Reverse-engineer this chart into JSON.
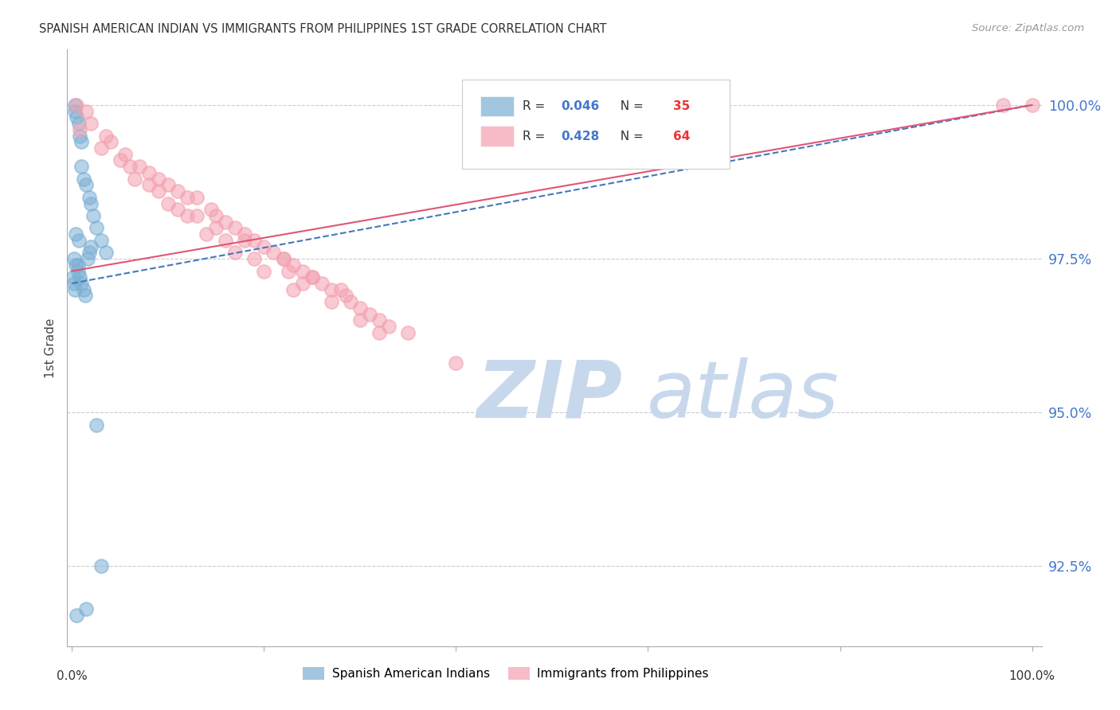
{
  "title": "SPANISH AMERICAN INDIAN VS IMMIGRANTS FROM PHILIPPINES 1ST GRADE CORRELATION CHART",
  "source": "Source: ZipAtlas.com",
  "ylabel": "1st Grade",
  "r_blue": 0.046,
  "n_blue": 35,
  "r_pink": 0.428,
  "n_pink": 64,
  "legend_label_blue": "Spanish American Indians",
  "legend_label_pink": "Immigrants from Philippines",
  "ytick_labels": [
    "92.5%",
    "95.0%",
    "97.5%",
    "100.0%"
  ],
  "ytick_values": [
    92.5,
    95.0,
    97.5,
    100.0
  ],
  "ymin": 91.2,
  "ymax": 100.9,
  "xmin": -0.5,
  "xmax": 101.0,
  "color_blue": "#7BAFD4",
  "color_pink": "#F4A0B0",
  "color_blue_line": "#4477BB",
  "color_pink_line": "#E05575",
  "watermark_zip": "ZIP",
  "watermark_atlas": "atlas",
  "watermark_color_zip": "#C8D8EC",
  "watermark_color_atlas": "#C8D8EC",
  "blue_x": [
    0.3,
    0.3,
    0.5,
    0.7,
    0.8,
    1.0,
    1.0,
    1.2,
    1.5,
    1.8,
    2.0,
    2.2,
    2.5,
    3.0,
    3.5,
    0.2,
    0.4,
    0.6,
    0.8,
    1.0,
    1.2,
    1.4,
    1.6,
    1.8,
    2.0,
    0.1,
    0.2,
    0.3,
    2.5,
    3.0,
    1.5,
    0.5,
    0.7,
    0.4,
    0.6
  ],
  "blue_y": [
    100.0,
    99.9,
    99.8,
    99.7,
    99.5,
    99.4,
    99.0,
    98.8,
    98.7,
    98.5,
    98.4,
    98.2,
    98.0,
    97.8,
    97.6,
    97.5,
    97.4,
    97.3,
    97.2,
    97.1,
    97.0,
    96.9,
    97.5,
    97.6,
    97.7,
    97.2,
    97.1,
    97.0,
    94.8,
    92.5,
    91.8,
    91.7,
    97.8,
    97.9,
    97.4
  ],
  "pink_x": [
    0.5,
    1.5,
    2.0,
    3.5,
    4.0,
    5.5,
    7.0,
    8.0,
    9.0,
    10.0,
    11.0,
    12.0,
    13.0,
    14.5,
    15.0,
    16.0,
    17.0,
    18.0,
    19.0,
    20.0,
    21.0,
    22.0,
    23.0,
    24.0,
    25.0,
    26.0,
    27.0,
    28.5,
    29.0,
    30.0,
    31.0,
    32.0,
    33.0,
    35.0,
    10.0,
    12.0,
    15.0,
    18.0,
    22.0,
    25.0,
    28.0,
    5.0,
    8.0,
    11.0,
    14.0,
    17.0,
    20.0,
    23.0,
    30.0,
    6.0,
    9.0,
    13.0,
    16.0,
    19.0,
    24.0,
    27.0,
    32.0,
    3.0,
    6.5,
    22.5,
    0.8,
    40.0,
    97.0,
    100.0
  ],
  "pink_y": [
    100.0,
    99.9,
    99.7,
    99.5,
    99.4,
    99.2,
    99.0,
    98.9,
    98.8,
    98.7,
    98.6,
    98.5,
    98.5,
    98.3,
    98.2,
    98.1,
    98.0,
    97.9,
    97.8,
    97.7,
    97.6,
    97.5,
    97.4,
    97.3,
    97.2,
    97.1,
    97.0,
    96.9,
    96.8,
    96.7,
    96.6,
    96.5,
    96.4,
    96.3,
    98.4,
    98.2,
    98.0,
    97.8,
    97.5,
    97.2,
    97.0,
    99.1,
    98.7,
    98.3,
    97.9,
    97.6,
    97.3,
    97.0,
    96.5,
    99.0,
    98.6,
    98.2,
    97.8,
    97.5,
    97.1,
    96.8,
    96.3,
    99.3,
    98.8,
    97.3,
    99.6,
    95.8,
    100.0,
    100.0
  ],
  "blue_line_x0": 0.0,
  "blue_line_y0": 97.1,
  "blue_line_x1": 100.0,
  "blue_line_y1": 100.0,
  "pink_line_x0": 0.0,
  "pink_line_y0": 97.3,
  "pink_line_x1": 100.0,
  "pink_line_y1": 100.0
}
